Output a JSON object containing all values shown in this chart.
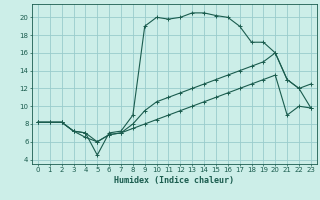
{
  "xlabel": "Humidex (Indice chaleur)",
  "xlim": [
    -0.5,
    23.5
  ],
  "ylim": [
    3.5,
    21.5
  ],
  "yticks": [
    4,
    6,
    8,
    10,
    12,
    14,
    16,
    18,
    20
  ],
  "xticks": [
    0,
    1,
    2,
    3,
    4,
    5,
    6,
    7,
    8,
    9,
    10,
    11,
    12,
    13,
    14,
    15,
    16,
    17,
    18,
    19,
    20,
    21,
    22,
    23
  ],
  "bg_color": "#cceee8",
  "line_color": "#1a5c4e",
  "grid_color": "#99cccc",
  "line1_x": [
    0,
    1,
    2,
    3,
    4,
    5,
    6,
    7,
    8,
    9,
    10,
    11,
    12,
    13,
    14,
    15,
    16,
    17,
    18,
    19,
    20,
    21,
    22,
    23
  ],
  "line1_y": [
    8.2,
    8.2,
    8.2,
    7.2,
    7.0,
    4.5,
    7.0,
    7.2,
    9.0,
    19.0,
    20.0,
    19.8,
    20.0,
    20.5,
    20.5,
    20.2,
    20.0,
    19.0,
    17.2,
    17.2,
    16.0,
    13.0,
    12.0,
    12.5
  ],
  "line2_x": [
    0,
    1,
    2,
    3,
    4,
    5,
    6,
    7,
    8,
    9,
    10,
    11,
    12,
    13,
    14,
    15,
    16,
    17,
    18,
    19,
    20,
    21,
    22,
    23
  ],
  "line2_y": [
    8.2,
    8.2,
    8.2,
    7.2,
    6.5,
    6.0,
    6.8,
    7.0,
    7.5,
    8.0,
    8.5,
    9.0,
    9.5,
    10.0,
    10.5,
    11.0,
    11.5,
    12.0,
    12.5,
    13.0,
    13.5,
    9.0,
    10.0,
    9.8
  ],
  "line3_x": [
    0,
    2,
    3,
    4,
    5,
    6,
    7,
    8,
    9,
    10,
    11,
    12,
    13,
    14,
    15,
    16,
    17,
    18,
    19,
    20,
    21,
    22,
    23
  ],
  "line3_y": [
    8.2,
    8.2,
    7.2,
    7.0,
    6.0,
    6.8,
    7.0,
    8.0,
    9.5,
    10.5,
    11.0,
    11.5,
    12.0,
    12.5,
    13.0,
    13.5,
    14.0,
    14.5,
    15.0,
    16.0,
    13.0,
    12.0,
    9.8
  ]
}
